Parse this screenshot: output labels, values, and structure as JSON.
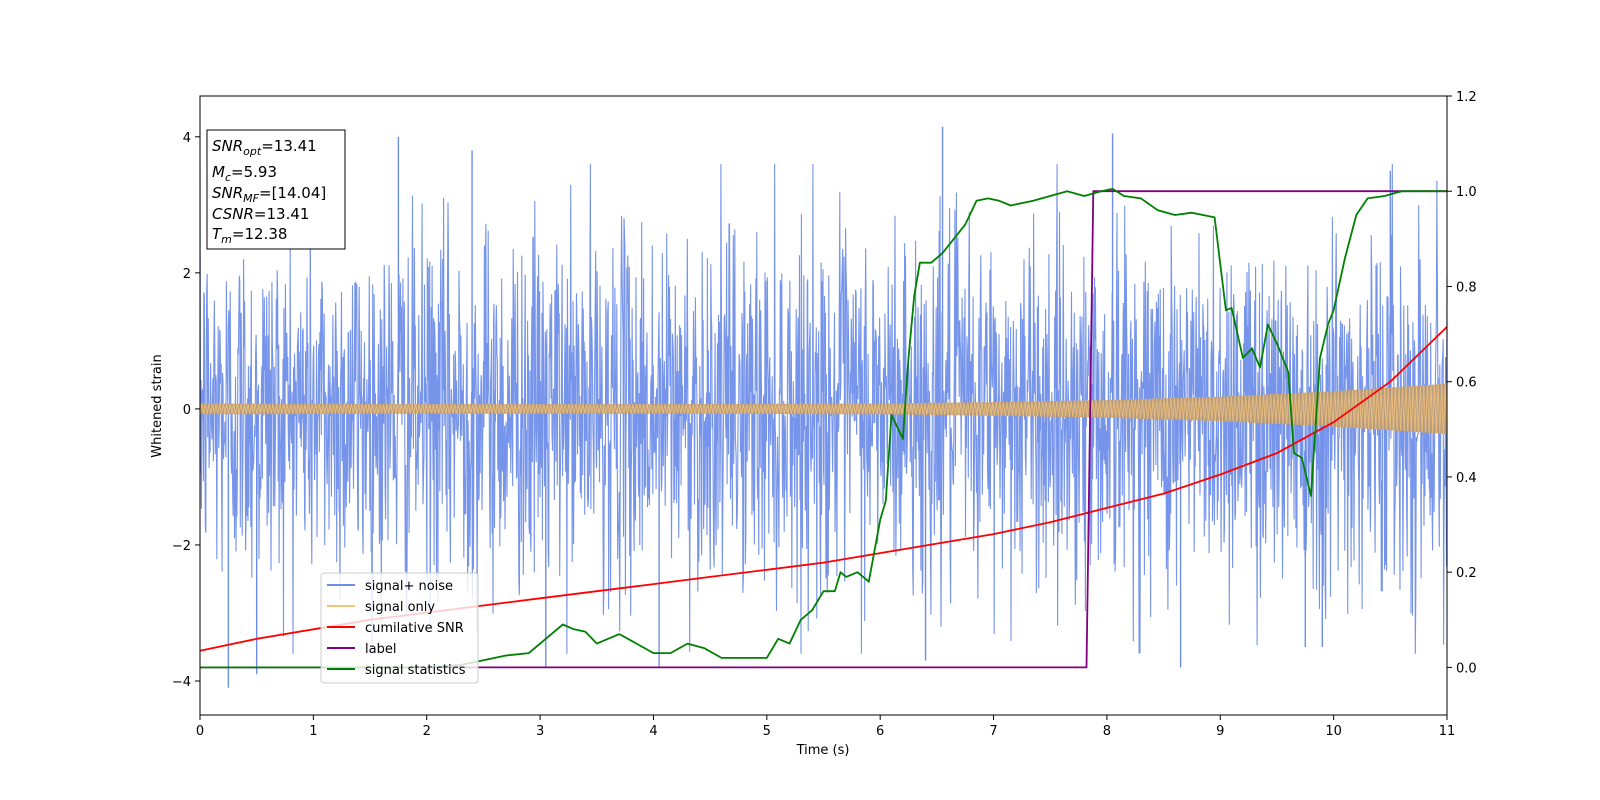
{
  "chart_data": {
    "type": "line",
    "xlabel": "Time (s)",
    "ylabel": "Whitened strain",
    "xlim": [
      0,
      11
    ],
    "ylim": [
      -4.5,
      4.6
    ],
    "y2lim": [
      -0.1,
      1.2
    ],
    "x_ticks": [
      "0",
      "1",
      "2",
      "3",
      "4",
      "5",
      "6",
      "7",
      "8",
      "9",
      "10",
      "11"
    ],
    "y_ticks": [
      "−4",
      "−2",
      "0",
      "2",
      "4"
    ],
    "y2_ticks": [
      "0.0",
      "0.2",
      "0.4",
      "0.6",
      "0.8",
      "1.0",
      "1.2"
    ],
    "legend": {
      "placement": "lower-left",
      "entries": [
        "signal+ noise",
        "signal only",
        "cumilative SNR",
        "label",
        "signal statistics"
      ]
    },
    "colors": {
      "signal_noise": "#6f8ee8",
      "signal_only": "#f4c27a",
      "cumulative_snr": "#ff0000",
      "label": "#800080",
      "signal_statistics": "#008000"
    },
    "annotation": [
      {
        "sym": "SNR",
        "sub": "opt",
        "value": "=13.41"
      },
      {
        "sym": "M",
        "sub": "c",
        "value": "=5.93"
      },
      {
        "sym": "SNR",
        "sub": "MF",
        "value": "=[14.04]"
      },
      {
        "sym": "CSNR",
        "sub": "",
        "value": "=13.41"
      },
      {
        "sym": "T",
        "sub": "m",
        "value": "=12.38"
      }
    ],
    "series": [
      {
        "name": "signal+ noise",
        "axis": "left",
        "style": "noise-band",
        "std": 1.3,
        "peak_points": [
          [
            0.25,
            -4.1
          ],
          [
            0.5,
            -3.9
          ],
          [
            1.75,
            4.0
          ],
          [
            2.4,
            3.8
          ],
          [
            3.05,
            -3.8
          ],
          [
            4.05,
            -3.8
          ],
          [
            6.55,
            4.15
          ],
          [
            6.4,
            -3.7
          ],
          [
            8.05,
            4.05
          ],
          [
            8.65,
            -3.8
          ],
          [
            9.75,
            -3.5
          ],
          [
            9.9,
            -3.5
          ],
          [
            10.5,
            3.5
          ]
        ]
      },
      {
        "name": "signal only",
        "axis": "left",
        "style": "chirp-envelope",
        "envelope": [
          [
            0,
            0.08
          ],
          [
            2,
            0.07
          ],
          [
            4,
            0.07
          ],
          [
            6,
            0.08
          ],
          [
            7,
            0.1
          ],
          [
            8,
            0.13
          ],
          [
            9,
            0.18
          ],
          [
            10,
            0.26
          ],
          [
            11,
            0.37
          ]
        ]
      },
      {
        "name": "cumilative SNR",
        "axis": "right",
        "x": [
          0,
          0.5,
          1,
          1.5,
          2,
          2.5,
          3,
          3.5,
          4,
          4.5,
          5,
          5.5,
          6,
          6.5,
          7,
          7.5,
          8,
          8.5,
          9,
          9.5,
          10,
          10.5,
          11
        ],
        "y": [
          0.035,
          0.06,
          0.08,
          0.1,
          0.115,
          0.13,
          0.145,
          0.16,
          0.175,
          0.19,
          0.205,
          0.22,
          0.24,
          0.26,
          0.28,
          0.305,
          0.335,
          0.365,
          0.405,
          0.45,
          0.515,
          0.6,
          0.715
        ]
      },
      {
        "name": "label",
        "axis": "right",
        "x": [
          0,
          7.82,
          7.88,
          11
        ],
        "y": [
          0.0,
          0.0,
          1.0,
          1.0
        ]
      },
      {
        "name": "signal statistics",
        "axis": "right",
        "x": [
          0,
          0.5,
          1,
          1.5,
          2,
          2.3,
          2.5,
          2.7,
          2.9,
          3.1,
          3.2,
          3.3,
          3.4,
          3.5,
          3.6,
          3.7,
          3.85,
          4.0,
          4.15,
          4.3,
          4.45,
          4.6,
          4.75,
          4.9,
          5.0,
          5.1,
          5.2,
          5.3,
          5.4,
          5.5,
          5.6,
          5.65,
          5.7,
          5.8,
          5.9,
          6.0,
          6.05,
          6.1,
          6.2,
          6.25,
          6.3,
          6.35,
          6.45,
          6.55,
          6.65,
          6.75,
          6.85,
          6.95,
          7.05,
          7.15,
          7.25,
          7.35,
          7.5,
          7.65,
          7.8,
          7.95,
          8.05,
          8.15,
          8.3,
          8.45,
          8.6,
          8.75,
          8.95,
          9.05,
          9.1,
          9.2,
          9.28,
          9.35,
          9.42,
          9.5,
          9.6,
          9.65,
          9.72,
          9.8,
          9.88,
          9.95,
          10.0,
          10.1,
          10.2,
          10.3,
          10.45,
          10.6,
          10.8,
          11.0
        ],
        "y": [
          0.0,
          0.0,
          0.0,
          0.0,
          0.0,
          0.005,
          0.015,
          0.025,
          0.03,
          0.07,
          0.09,
          0.08,
          0.075,
          0.05,
          0.06,
          0.07,
          0.05,
          0.03,
          0.03,
          0.05,
          0.04,
          0.02,
          0.02,
          0.02,
          0.02,
          0.06,
          0.05,
          0.1,
          0.12,
          0.16,
          0.16,
          0.2,
          0.19,
          0.2,
          0.18,
          0.31,
          0.35,
          0.53,
          0.48,
          0.65,
          0.78,
          0.85,
          0.85,
          0.87,
          0.9,
          0.93,
          0.98,
          0.985,
          0.98,
          0.97,
          0.975,
          0.98,
          0.99,
          1.0,
          0.99,
          1.0,
          1.005,
          0.99,
          0.985,
          0.96,
          0.95,
          0.955,
          0.945,
          0.75,
          0.755,
          0.65,
          0.67,
          0.63,
          0.72,
          0.68,
          0.62,
          0.45,
          0.44,
          0.36,
          0.65,
          0.72,
          0.75,
          0.86,
          0.95,
          0.985,
          0.99,
          1.0,
          1.0,
          1.0
        ]
      }
    ]
  }
}
